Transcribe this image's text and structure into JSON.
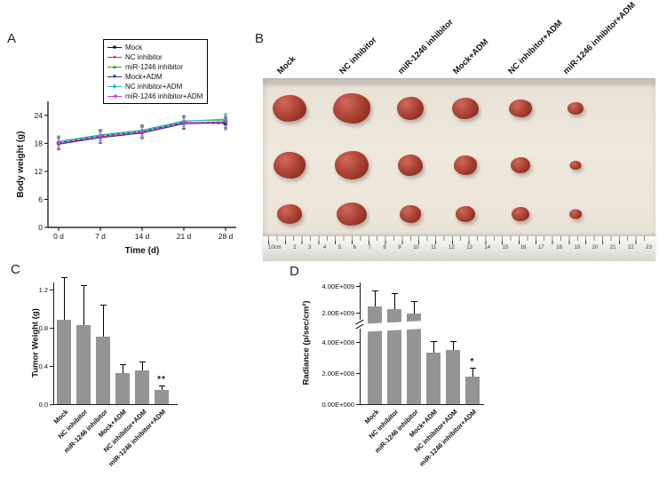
{
  "panels": {
    "a": "A",
    "b": "B",
    "c": "C",
    "d": "D"
  },
  "groups": [
    "Mock",
    "NC inhibitor",
    "miR-1246 inhibitor",
    "Mock+ADM",
    "NC inhibitor+ADM",
    "miR-1246 inhibitor+ADM"
  ],
  "chart_data": [
    {
      "id": "body_weight",
      "type": "line",
      "xlabel": "Time (d)",
      "ylabel": "Body weight (g)",
      "x": [
        0,
        7,
        14,
        21,
        28
      ],
      "x_tick_labels": [
        "0 d",
        "7 d",
        "14 d",
        "21 d",
        "28 d"
      ],
      "ylim": [
        0,
        27
      ],
      "yticks": [
        0,
        6,
        12,
        18,
        24
      ],
      "legend_position": "top-right",
      "series": [
        {
          "name": "Mock",
          "marker": "square",
          "color": "#111111",
          "dash": "4,2",
          "values": [
            18.1,
            19.5,
            20.5,
            22.5,
            22.2
          ],
          "err": 1.3
        },
        {
          "name": "NC inhibitor",
          "marker": "circle",
          "color": "#d23030",
          "dash": "4,2",
          "values": [
            17.9,
            19.3,
            20.3,
            22.3,
            22.7
          ],
          "err": 1.3
        },
        {
          "name": "miR-1246 inhibitor",
          "marker": "triangle-up",
          "color": "#2ba02b",
          "dash": "",
          "values": [
            18.4,
            19.8,
            20.8,
            22.8,
            23.0
          ],
          "err": 1.2
        },
        {
          "name": "Mock+ADM",
          "marker": "triangle-down",
          "color": "#26309e",
          "dash": "",
          "values": [
            17.8,
            19.2,
            20.2,
            22.2,
            22.4
          ],
          "err": 1.2
        },
        {
          "name": "NC inhibitor+ADM",
          "marker": "diamond",
          "color": "#17bfd4",
          "dash": "",
          "values": [
            18.3,
            19.7,
            20.7,
            22.7,
            23.2
          ],
          "err": 1.2
        },
        {
          "name": "miR-1246 inhibitor+ADM",
          "marker": "triangle-left",
          "color": "#c93bc9",
          "dash": "",
          "values": [
            18.0,
            19.4,
            20.4,
            22.4,
            22.6
          ],
          "err": 1.2
        }
      ]
    },
    {
      "id": "tumor_weight",
      "type": "bar",
      "ylabel": "Tumor Weight (g)",
      "categories": [
        "Mock",
        "NC inhibitor",
        "miR-1246 inhibitor",
        "Mock+ADM",
        "NC inhibitor+ADM",
        "miR-1246 inhibitor+ADM"
      ],
      "values": [
        0.88,
        0.83,
        0.71,
        0.33,
        0.35,
        0.15
      ],
      "errors": [
        0.45,
        0.42,
        0.33,
        0.09,
        0.1,
        0.05
      ],
      "yticks": [
        0,
        0.4,
        0.8,
        1.2
      ],
      "ytick_labels": [
        "0.0",
        "0.4",
        "0.8",
        "1.2"
      ],
      "ylim": [
        0,
        1.28
      ],
      "bar_color": "#949494",
      "annotations": [
        {
          "index": 5,
          "text": "**"
        }
      ]
    },
    {
      "id": "radiance",
      "type": "bar-broken-axis",
      "ylabel": "Radiance (p/sec/cm²)",
      "categories": [
        "Mock",
        "NC inhibitor",
        "miR-1246 inhibitor",
        "Mock+ADM",
        "NC inhibitor+ADM",
        "miR-1246 inhibitor+ADM"
      ],
      "values": [
        2450000000,
        2300000000,
        1950000000,
        330000000,
        350000000,
        180000000
      ],
      "errors": [
        1250000000,
        1150000000,
        950000000,
        130000000,
        110000000,
        55000000
      ],
      "yticks": [
        {
          "value": 4000000000,
          "label": "4.00E+009"
        },
        {
          "value": 2000000000,
          "label": "2.00E+009"
        },
        {
          "value": 400000000,
          "label": "4.00E+008"
        },
        {
          "value": 200000000,
          "label": "2.00E+008"
        },
        {
          "value": 0,
          "label": "0.00E+000"
        }
      ],
      "axis_break": {
        "lower": 400000000,
        "upper": 2000000000
      },
      "bar_color": "#949494",
      "annotations": [
        {
          "index": 5,
          "text": "*"
        }
      ]
    }
  ],
  "photo_panel": {
    "column_labels": [
      "Mock",
      "NC inhibitor",
      "miR-1246 inhibitor",
      "Mock+ADM",
      "NC inhibitor+ADM",
      "miR-1246 inhibitor+ADM"
    ],
    "rows": 3,
    "ruler_numbers": [
      "10cm",
      "2",
      "3",
      "4",
      "5",
      "6",
      "7",
      "8",
      "9",
      "10",
      "11",
      "12",
      "13",
      "14",
      "15",
      "16",
      "17",
      "18",
      "19",
      "20",
      "21",
      "22",
      "23"
    ],
    "tumor_sizes": [
      [
        [
          38,
          30
        ],
        [
          42,
          34
        ],
        [
          30,
          26
        ],
        [
          30,
          24
        ],
        [
          26,
          20
        ],
        [
          18,
          14
        ]
      ],
      [
        [
          36,
          30
        ],
        [
          38,
          32
        ],
        [
          28,
          24
        ],
        [
          26,
          22
        ],
        [
          22,
          18
        ],
        [
          13,
          10
        ]
      ],
      [
        [
          28,
          22
        ],
        [
          34,
          26
        ],
        [
          24,
          20
        ],
        [
          22,
          18
        ],
        [
          20,
          16
        ],
        [
          14,
          11
        ]
      ]
    ]
  }
}
